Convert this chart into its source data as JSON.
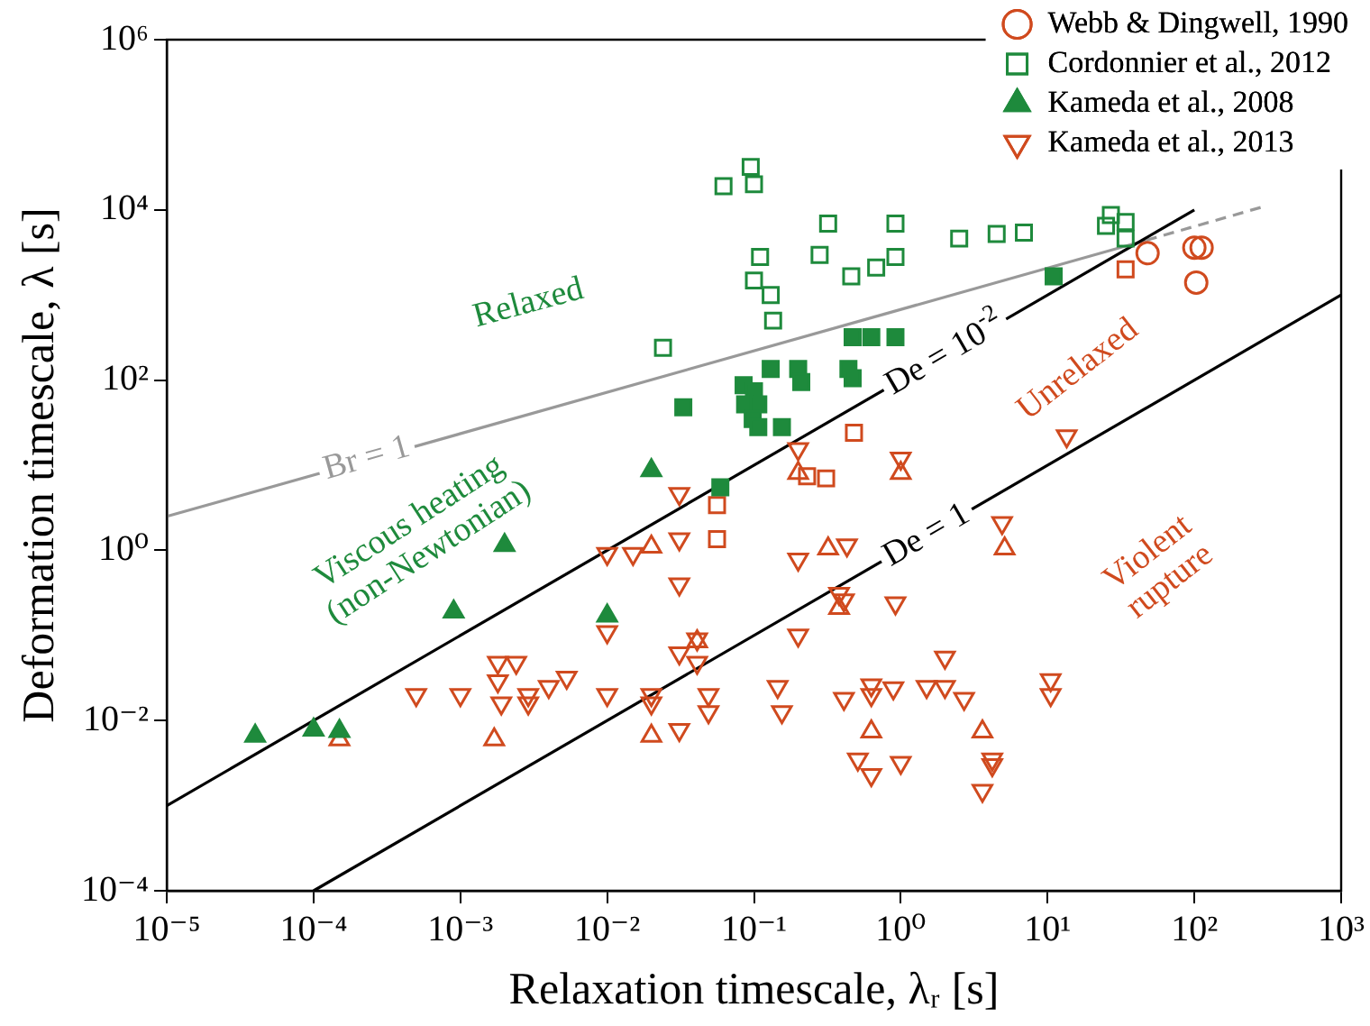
{
  "chart_data": {
    "type": "scatter",
    "xlabel": "Relaxation timescale, λᵣ [s]",
    "ylabel": "Deformation timescale, λ [s]",
    "log": "xy",
    "grid": false,
    "legend": "top right",
    "xlim": [
      1e-05,
      1000
    ],
    "ylim": [
      0.0001,
      1000000
    ],
    "xticks": [
      {
        "value": 1e-05,
        "label": "10⁻⁵"
      },
      {
        "value": 0.0001,
        "label": "10⁻⁴"
      },
      {
        "value": 0.001,
        "label": "10⁻³"
      },
      {
        "value": 0.01,
        "label": "10⁻²"
      },
      {
        "value": 0.1,
        "label": "10⁻¹"
      },
      {
        "value": 1,
        "label": "10⁰"
      },
      {
        "value": 10,
        "label": "10¹"
      },
      {
        "value": 100,
        "label": "10²"
      },
      {
        "value": 1000,
        "label": "10³"
      }
    ],
    "yticks": [
      {
        "value": 0.0001,
        "label": "10⁻⁴"
      },
      {
        "value": 0.01,
        "label": "10⁻²"
      },
      {
        "value": 1,
        "label": "10⁰"
      },
      {
        "value": 100,
        "label": "10²"
      },
      {
        "value": 10000,
        "label": "10⁴"
      },
      {
        "value": 1000000,
        "label": "10⁶"
      }
    ],
    "series": [
      {
        "name": "Webb & Dingwell, 1990",
        "marker": "circle",
        "color": "#d04a1e",
        "x": [
          48,
          100,
          112,
          103
        ],
        "values": [
          3100,
          3600,
          3600,
          1400
        ]
      },
      {
        "name": "Cordonnier et al., 2012",
        "marker": "square",
        "color": "#1e8a3c",
        "x": [
          0.062,
          0.095,
          0.1,
          0.32,
          0.92,
          0.28,
          0.46,
          0.68,
          0.92,
          0.11,
          0.1,
          0.13,
          0.135,
          0.024,
          2.5,
          4.5,
          6.9,
          27,
          34,
          25,
          34
        ],
        "values": [
          19000,
          32000,
          20000,
          6900,
          6900,
          2950,
          1660,
          2100,
          2800,
          2800,
          1480,
          1000,
          500,
          240,
          4600,
          5200,
          5400,
          8700,
          7200,
          6500,
          4600
        ]
      },
      {
        "marker": "square-filled",
        "color": "#1e8a3c",
        "x": [
          0.033,
          0.059,
          0.085,
          0.1,
          0.087,
          0.107,
          0.098,
          0.107,
          0.155,
          0.13,
          0.2,
          0.21,
          0.44,
          0.47,
          0.47,
          0.63,
          0.92,
          11
        ],
        "values": [
          48,
          5.5,
          87,
          74,
          52,
          52,
          35,
          28,
          28,
          135,
          135,
          95,
          135,
          105,
          320,
          320,
          320,
          1660
        ]
      },
      {
        "marker": "square",
        "color": "#d04a1e",
        "x": [
          34,
          0.48,
          0.31,
          0.23,
          0.056,
          0.056
        ],
        "values": [
          2000,
          24,
          7,
          7.4,
          3.4,
          1.35
        ]
      },
      {
        "name": "Kameda et al., 2008",
        "marker": "triangle-filled",
        "color": "#1e8a3c",
        "x": [
          4e-05,
          0.0001,
          0.00015,
          0.0009,
          0.002,
          0.01,
          0.02
        ],
        "values": [
          0.0066,
          0.0078,
          0.0075,
          0.19,
          1.15,
          0.17,
          8.7
        ]
      },
      {
        "marker": "triangle",
        "color": "#d04a1e",
        "x": [
          0.00015,
          0.0017,
          0.02,
          0.02,
          1,
          0.2,
          0.38,
          0.32,
          5.1,
          0.63,
          3.6,
          0.041
        ],
        "values": [
          0.006,
          0.006,
          1.1,
          0.0066,
          8.1,
          8.1,
          0.21,
          1.05,
          1.05,
          0.0074,
          0.0074,
          0.085
        ]
      },
      {
        "name": "Kameda et al., 2013",
        "marker": "triangle-down",
        "color": "#d04a1e",
        "x": [
          0.0005,
          0.001,
          0.0018,
          0.0024,
          0.0018,
          0.0019,
          0.0029,
          0.0029,
          0.004,
          0.0053,
          0.01,
          0.01,
          0.01,
          0.015,
          0.02,
          0.031,
          0.031,
          0.031,
          0.031,
          0.031,
          0.041,
          0.041,
          0.02,
          0.049,
          0.049,
          0.145,
          0.155,
          0.2,
          0.2,
          0.41,
          0.43,
          0.41,
          0.63,
          0.63,
          0.89,
          0.92,
          0.51,
          0.63,
          1,
          1.5,
          2,
          2,
          2.7,
          3.6,
          4.2,
          4.2,
          4.9,
          0.38,
          10.5,
          10.5,
          13.5,
          0.2,
          1
        ],
        "values": [
          0.02,
          0.02,
          0.048,
          0.048,
          0.029,
          0.016,
          0.02,
          0.016,
          0.025,
          0.032,
          0.02,
          0.11,
          0.91,
          0.91,
          0.02,
          0.0078,
          4.6,
          1.35,
          0.4,
          0.062,
          0.09,
          0.048,
          0.016,
          0.02,
          0.0126,
          0.025,
          0.0126,
          0.78,
          0.1,
          0.26,
          1.15,
          0.018,
          0.026,
          0.02,
          0.024,
          0.24,
          0.0035,
          0.0023,
          0.0032,
          0.025,
          0.025,
          0.055,
          0.018,
          0.0015,
          0.0035,
          0.003,
          2.1,
          0.31,
          0.03,
          0.02,
          22,
          15.5,
          12
        ]
      },
      {
        "type": "line",
        "marker": "none",
        "color": "#000000",
        "x": [
          1e-05,
          100
        ],
        "values": [
          0.001,
          10000
        ]
      },
      {
        "type": "line",
        "marker": "none",
        "color": "#000000",
        "x": [
          0.0001,
          1000
        ],
        "values": [
          0.0001,
          1000
        ]
      },
      {
        "type": "line",
        "marker": "none",
        "color": "#999999",
        "x": [
          1e-05,
          47
        ],
        "values": [
          2.5,
          4400
        ]
      },
      {
        "type": "line",
        "marker": "none",
        "line_style": "dashed",
        "color": "#999999",
        "x": [
          47,
          300
        ],
        "values": [
          4400,
          11000
        ]
      }
    ],
    "annotations": [
      "Relaxed",
      "Viscous heating\n(non-Newtonian)",
      "Unrelaxed",
      "Violent\nrupture",
      {
        "text": "De = 10$^{-2}$",
        "x": 2.0,
        "y": 200
      },
      {
        "text": "De = 1",
        "x": 1.5,
        "y": 1.5
      },
      {
        "text": "Br = 1",
        "x": 0.00023,
        "y": 12
      }
    ]
  }
}
